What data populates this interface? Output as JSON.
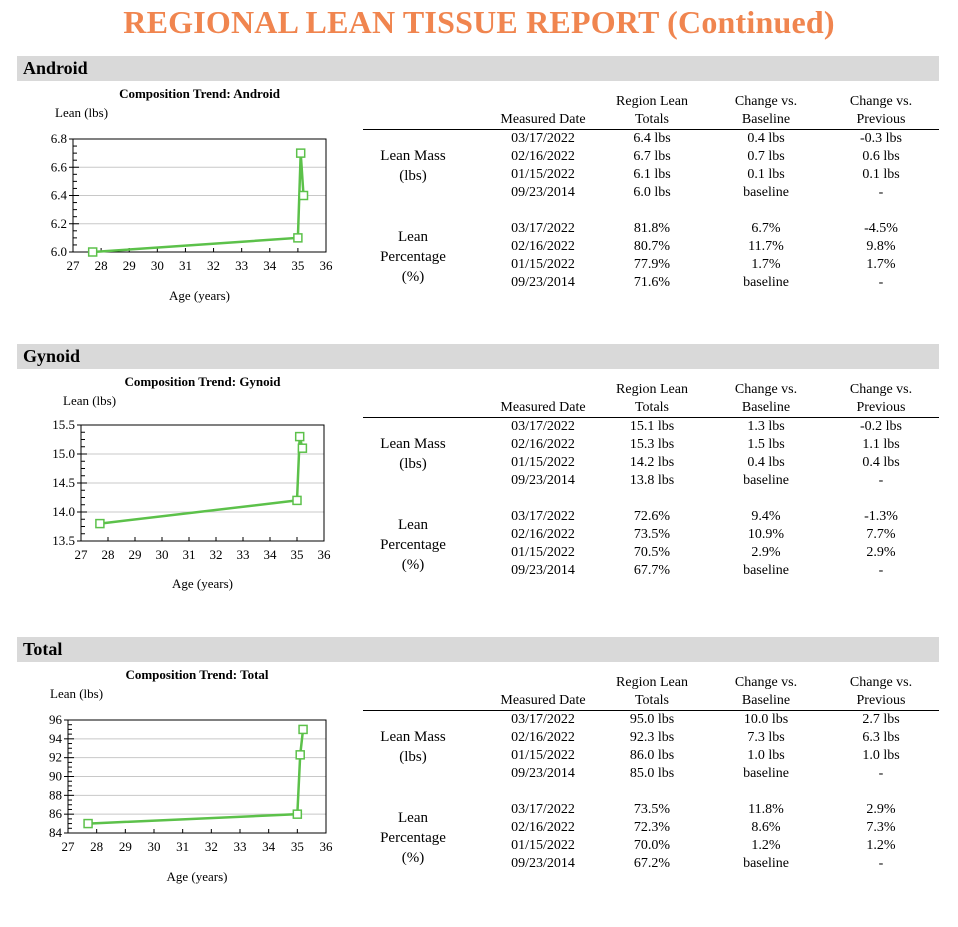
{
  "report": {
    "title": "REGIONAL LEAN TISSUE REPORT (Continued)"
  },
  "columns": {
    "date": "Measured Date",
    "totals_1": "Region Lean",
    "totals_2": "Totals",
    "baseline_1": "Change vs.",
    "baseline_2": "Baseline",
    "previous_1": "Change vs.",
    "previous_2": "Previous"
  },
  "group_labels": {
    "mass_1": "Lean Mass",
    "mass_2": "(lbs)",
    "pct_1": "Lean",
    "pct_2": "Percentage",
    "pct_3": "(%)"
  },
  "sections": [
    {
      "name": "Android",
      "chart_title": "Composition Trend: Android",
      "ylabel": "Lean (lbs)",
      "xlabel": "Age (years)",
      "lean_mass": [
        {
          "date": "03/17/2022",
          "total": "6.4 lbs",
          "baseline": "0.4 lbs",
          "previous": "-0.3 lbs"
        },
        {
          "date": "02/16/2022",
          "total": "6.7 lbs",
          "baseline": "0.7 lbs",
          "previous": "0.6 lbs"
        },
        {
          "date": "01/15/2022",
          "total": "6.1 lbs",
          "baseline": "0.1 lbs",
          "previous": "0.1 lbs"
        },
        {
          "date": "09/23/2014",
          "total": "6.0 lbs",
          "baseline": "baseline",
          "previous": "-"
        }
      ],
      "lean_pct": [
        {
          "date": "03/17/2022",
          "total": "81.8%",
          "baseline": "6.7%",
          "previous": "-4.5%"
        },
        {
          "date": "02/16/2022",
          "total": "80.7%",
          "baseline": "11.7%",
          "previous": "9.8%"
        },
        {
          "date": "01/15/2022",
          "total": "77.9%",
          "baseline": "1.7%",
          "previous": "1.7%"
        },
        {
          "date": "09/23/2014",
          "total": "71.6%",
          "baseline": "baseline",
          "previous": "-"
        }
      ]
    },
    {
      "name": "Gynoid",
      "chart_title": "Composition Trend: Gynoid",
      "ylabel": "Lean (lbs)",
      "xlabel": "Age (years)",
      "lean_mass": [
        {
          "date": "03/17/2022",
          "total": "15.1 lbs",
          "baseline": "1.3 lbs",
          "previous": "-0.2 lbs"
        },
        {
          "date": "02/16/2022",
          "total": "15.3 lbs",
          "baseline": "1.5 lbs",
          "previous": "1.1 lbs"
        },
        {
          "date": "01/15/2022",
          "total": "14.2 lbs",
          "baseline": "0.4 lbs",
          "previous": "0.4 lbs"
        },
        {
          "date": "09/23/2014",
          "total": "13.8 lbs",
          "baseline": "baseline",
          "previous": "-"
        }
      ],
      "lean_pct": [
        {
          "date": "03/17/2022",
          "total": "72.6%",
          "baseline": "9.4%",
          "previous": "-1.3%"
        },
        {
          "date": "02/16/2022",
          "total": "73.5%",
          "baseline": "10.9%",
          "previous": "7.7%"
        },
        {
          "date": "01/15/2022",
          "total": "70.5%",
          "baseline": "2.9%",
          "previous": "2.9%"
        },
        {
          "date": "09/23/2014",
          "total": "67.7%",
          "baseline": "baseline",
          "previous": "-"
        }
      ]
    },
    {
      "name": "Total",
      "chart_title": "Composition Trend: Total",
      "ylabel": "Lean (lbs)",
      "xlabel": "Age (years)",
      "lean_mass": [
        {
          "date": "03/17/2022",
          "total": "95.0 lbs",
          "baseline": "10.0 lbs",
          "previous": "2.7 lbs"
        },
        {
          "date": "02/16/2022",
          "total": "92.3 lbs",
          "baseline": "7.3 lbs",
          "previous": "6.3 lbs"
        },
        {
          "date": "01/15/2022",
          "total": "86.0 lbs",
          "baseline": "1.0 lbs",
          "previous": "1.0 lbs"
        },
        {
          "date": "09/23/2014",
          "total": "85.0 lbs",
          "baseline": "baseline",
          "previous": "-"
        }
      ],
      "lean_pct": [
        {
          "date": "03/17/2022",
          "total": "73.5%",
          "baseline": "11.8%",
          "previous": "2.9%"
        },
        {
          "date": "02/16/2022",
          "total": "72.3%",
          "baseline": "8.6%",
          "previous": "7.3%"
        },
        {
          "date": "01/15/2022",
          "total": "70.0%",
          "baseline": "1.2%",
          "previous": "1.2%"
        },
        {
          "date": "09/23/2014",
          "total": "67.2%",
          "baseline": "baseline",
          "previous": "-"
        }
      ]
    }
  ],
  "chart_data": [
    {
      "type": "line",
      "title": "Composition Trend: Android",
      "xlabel": "Age (years)",
      "ylabel": "Lean (lbs)",
      "xlim": [
        27,
        36
      ],
      "ylim": [
        6.0,
        6.8
      ],
      "xticks": [
        27,
        28,
        29,
        30,
        31,
        32,
        33,
        34,
        35,
        36
      ],
      "yticks": [
        6.0,
        6.2,
        6.4,
        6.6,
        6.8
      ],
      "ytick_labels": [
        "6.0",
        "6.2",
        "6.4",
        "6.6",
        "6.8"
      ],
      "grid": true,
      "color": "#5cc14a",
      "x": [
        27.7,
        35.0,
        35.1,
        35.2
      ],
      "y": [
        6.0,
        6.1,
        6.7,
        6.4
      ]
    },
    {
      "type": "line",
      "title": "Composition Trend: Gynoid",
      "xlabel": "Age (years)",
      "ylabel": "Lean (lbs)",
      "xlim": [
        27,
        36
      ],
      "ylim": [
        13.5,
        15.5
      ],
      "xticks": [
        27,
        28,
        29,
        30,
        31,
        32,
        33,
        34,
        35,
        36
      ],
      "yticks": [
        13.5,
        14.0,
        14.5,
        15.0,
        15.5
      ],
      "ytick_labels": [
        "13.5",
        "14.0",
        "14.5",
        "15.0",
        "15.5"
      ],
      "grid": true,
      "color": "#5cc14a",
      "x": [
        27.7,
        35.0,
        35.1,
        35.2
      ],
      "y": [
        13.8,
        14.2,
        15.3,
        15.1
      ]
    },
    {
      "type": "line",
      "title": "Composition Trend: Total",
      "xlabel": "Age (years)",
      "ylabel": "Lean (lbs)",
      "xlim": [
        27,
        36
      ],
      "ylim": [
        84,
        96
      ],
      "xticks": [
        27,
        28,
        29,
        30,
        31,
        32,
        33,
        34,
        35,
        36
      ],
      "yticks": [
        84,
        86,
        88,
        90,
        92,
        94,
        96
      ],
      "ytick_labels": [
        "84",
        "86",
        "88",
        "90",
        "92",
        "94",
        "96"
      ],
      "grid": true,
      "color": "#5cc14a",
      "x": [
        27.7,
        35.0,
        35.1,
        35.2
      ],
      "y": [
        85.0,
        86.0,
        92.3,
        95.0
      ]
    }
  ]
}
